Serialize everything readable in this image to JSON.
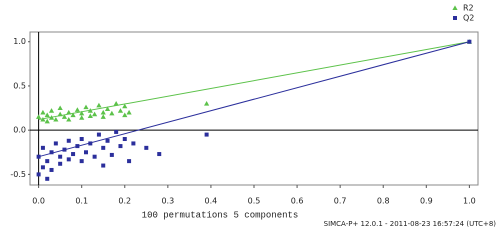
{
  "chart_data": {
    "type": "scatter",
    "xlabel": "100 permutations 5 components",
    "footer": "SIMCA-P+ 12.0.1 - 2011-08-23 16:57:24 (UTC+8)",
    "xlim": [
      -0.02,
      1.02
    ],
    "ylim": [
      -0.62,
      1.11
    ],
    "xticks": [
      {
        "value": 0,
        "label": "0.0"
      },
      0.1,
      0.2,
      0.3,
      0.4,
      0.5,
      0.6,
      0.7,
      0.8,
      0.9,
      {
        "value": 1,
        "label": "1.0"
      }
    ],
    "yticks": [
      -0.5,
      {
        "value": 0,
        "label": "0.0"
      },
      0.5,
      {
        "value": 1,
        "label": "1.0"
      }
    ],
    "legend": "top-right",
    "series": [
      {
        "name": "R2",
        "color": "#5cc24a",
        "marker": "triangle",
        "x": [
          0.0,
          0.01,
          0.01,
          0.02,
          0.02,
          0.03,
          0.03,
          0.04,
          0.05,
          0.05,
          0.06,
          0.07,
          0.07,
          0.08,
          0.09,
          0.1,
          0.1,
          0.11,
          0.12,
          0.12,
          0.13,
          0.14,
          0.15,
          0.15,
          0.16,
          0.17,
          0.18,
          0.19,
          0.2,
          0.2,
          0.21,
          0.39,
          1.0
        ],
        "values": [
          0.15,
          0.12,
          0.2,
          0.1,
          0.17,
          0.14,
          0.22,
          0.12,
          0.18,
          0.25,
          0.15,
          0.12,
          0.2,
          0.17,
          0.23,
          0.14,
          0.19,
          0.26,
          0.16,
          0.22,
          0.18,
          0.28,
          0.2,
          0.15,
          0.24,
          0.19,
          0.3,
          0.22,
          0.17,
          0.27,
          0.2,
          0.3,
          1.0
        ],
        "regression": {
          "x": [
            0,
            1
          ],
          "y": [
            0.12,
            1
          ]
        }
      },
      {
        "name": "Q2",
        "color": "#2b2f9c",
        "marker": "square",
        "x": [
          0.0,
          0.0,
          0.01,
          0.01,
          0.02,
          0.02,
          0.03,
          0.03,
          0.04,
          0.05,
          0.05,
          0.06,
          0.07,
          0.07,
          0.08,
          0.09,
          0.1,
          0.1,
          0.11,
          0.12,
          0.13,
          0.14,
          0.15,
          0.15,
          0.16,
          0.17,
          0.18,
          0.19,
          0.2,
          0.21,
          0.22,
          0.25,
          0.28,
          0.39,
          1.0
        ],
        "values": [
          -0.3,
          -0.5,
          -0.42,
          -0.2,
          -0.55,
          -0.35,
          -0.25,
          -0.45,
          -0.15,
          -0.3,
          -0.38,
          -0.22,
          -0.12,
          -0.33,
          -0.27,
          -0.18,
          -0.35,
          -0.1,
          -0.25,
          -0.15,
          -0.3,
          -0.05,
          -0.2,
          -0.4,
          -0.12,
          -0.28,
          -0.02,
          -0.18,
          -0.1,
          -0.35,
          -0.15,
          -0.2,
          -0.27,
          -0.05,
          1.0
        ],
        "regression": {
          "x": [
            0,
            1
          ],
          "y": [
            -0.3,
            1
          ]
        }
      }
    ]
  }
}
